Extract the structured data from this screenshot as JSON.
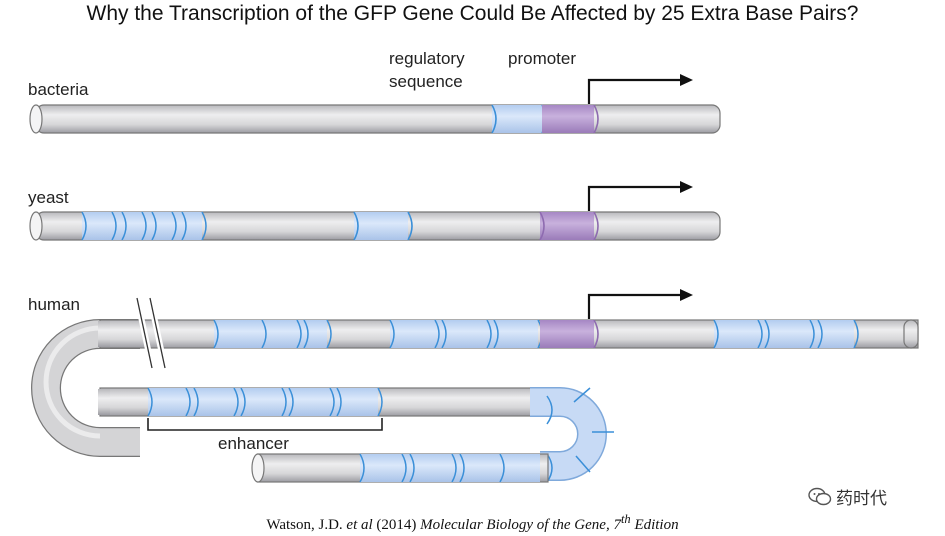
{
  "title": "Why the Transcription of the GFP Gene Could Be Affected by 25 Extra Base Pairs?",
  "labels": {
    "bacteria": "bacteria",
    "yeast": "yeast",
    "human": "human",
    "regulatory_sequence_line1": "regulatory",
    "regulatory_sequence_line2": "sequence",
    "promoter": "promoter",
    "enhancer": "enhancer"
  },
  "citation": {
    "authors": "Watson, J.D. ",
    "etal": "et al",
    "year": " (2014) ",
    "book": "Molecular Biology of the Gene, 7",
    "sup": "th",
    "edition": " Edition"
  },
  "watermark": "药时代",
  "colors": {
    "dna": "#d8d8da",
    "regulatory": "#c9dcf6",
    "regulatory_edge": "#3a8fd8",
    "promoter": "#b79ccf",
    "promoter_edge": "#8e6bb0",
    "arrow": "#111111"
  }
}
